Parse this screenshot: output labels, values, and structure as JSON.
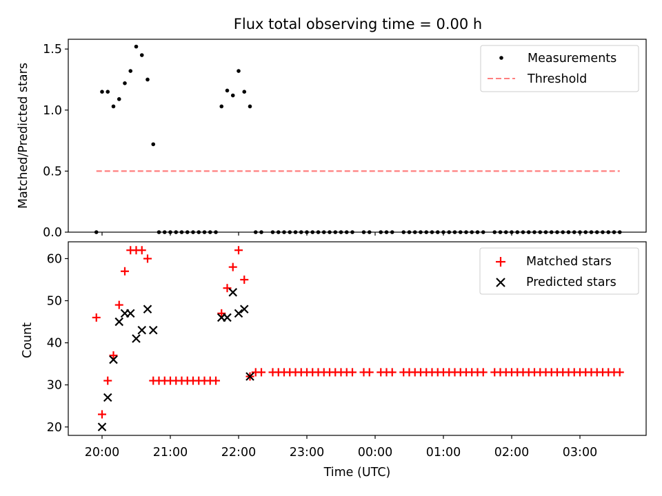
{
  "chart_data": [
    {
      "type": "scatter",
      "title": "Flux total observing time = 0.00 h",
      "xlabel": "",
      "ylabel": "Matched/Predicted stars",
      "ylim": [
        0,
        1.58
      ],
      "yticks": [
        "0.0",
        "0.5",
        "1.0",
        "1.5"
      ],
      "legend": "top-right",
      "threshold": 0.5,
      "series": [
        {
          "name": "Measurements",
          "marker": "dot",
          "color": "#000000",
          "points": [
            [
              "19:55",
              0
            ],
            [
              "20:00",
              1.15
            ],
            [
              "20:05",
              1.15
            ],
            [
              "20:10",
              1.03
            ],
            [
              "20:15",
              1.09
            ],
            [
              "20:20",
              1.22
            ],
            [
              "20:25",
              1.32
            ],
            [
              "20:30",
              1.52
            ],
            [
              "20:35",
              1.45
            ],
            [
              "20:40",
              1.25
            ],
            [
              "20:45",
              0.72
            ],
            [
              "20:50",
              0
            ],
            [
              "20:55",
              0
            ],
            [
              "21:00",
              0
            ],
            [
              "21:05",
              0
            ],
            [
              "21:10",
              0
            ],
            [
              "21:15",
              0
            ],
            [
              "21:20",
              0
            ],
            [
              "21:25",
              0
            ],
            [
              "21:30",
              0
            ],
            [
              "21:35",
              0
            ],
            [
              "21:40",
              0
            ],
            [
              "21:45",
              1.03
            ],
            [
              "21:50",
              1.16
            ],
            [
              "21:55",
              1.12
            ],
            [
              "22:00",
              1.32
            ],
            [
              "22:05",
              1.15
            ],
            [
              "22:10",
              1.03
            ],
            [
              "22:15",
              0
            ],
            [
              "22:20",
              0
            ],
            [
              "22:30",
              0
            ],
            [
              "22:35",
              0
            ],
            [
              "22:40",
              0
            ],
            [
              "22:45",
              0
            ],
            [
              "22:50",
              0
            ],
            [
              "22:55",
              0
            ],
            [
              "23:00",
              0
            ],
            [
              "23:05",
              0
            ],
            [
              "23:10",
              0
            ],
            [
              "23:15",
              0
            ],
            [
              "23:20",
              0
            ],
            [
              "23:25",
              0
            ],
            [
              "23:30",
              0
            ],
            [
              "23:35",
              0
            ],
            [
              "23:40",
              0
            ],
            [
              "23:50",
              0
            ],
            [
              "23:55",
              0
            ],
            [
              "00:05",
              0
            ],
            [
              "00:10",
              0
            ],
            [
              "00:15",
              0
            ],
            [
              "00:25",
              0
            ],
            [
              "00:30",
              0
            ],
            [
              "00:35",
              0
            ],
            [
              "00:40",
              0
            ],
            [
              "00:45",
              0
            ],
            [
              "00:50",
              0
            ],
            [
              "00:55",
              0
            ],
            [
              "01:00",
              0
            ],
            [
              "01:05",
              0
            ],
            [
              "01:10",
              0
            ],
            [
              "01:15",
              0
            ],
            [
              "01:20",
              0
            ],
            [
              "01:25",
              0
            ],
            [
              "01:30",
              0
            ],
            [
              "01:35",
              0
            ],
            [
              "01:45",
              0
            ],
            [
              "01:50",
              0
            ],
            [
              "01:55",
              0
            ],
            [
              "02:00",
              0
            ],
            [
              "02:05",
              0
            ],
            [
              "02:10",
              0
            ],
            [
              "02:15",
              0
            ],
            [
              "02:20",
              0
            ],
            [
              "02:25",
              0
            ],
            [
              "02:30",
              0
            ],
            [
              "02:35",
              0
            ],
            [
              "02:40",
              0
            ],
            [
              "02:45",
              0
            ],
            [
              "02:50",
              0
            ],
            [
              "02:55",
              0
            ],
            [
              "03:00",
              0
            ],
            [
              "03:05",
              0
            ],
            [
              "03:10",
              0
            ],
            [
              "03:15",
              0
            ],
            [
              "03:20",
              0
            ],
            [
              "03:25",
              0
            ],
            [
              "03:30",
              0
            ],
            [
              "03:35",
              0
            ]
          ]
        },
        {
          "name": "Threshold",
          "marker": "dashed-line",
          "color": "#ff7f7f",
          "points": [
            [
              "19:55",
              0.5
            ],
            [
              "03:35",
              0.5
            ]
          ]
        }
      ]
    },
    {
      "type": "scatter",
      "title": "",
      "xlabel": "Time (UTC)",
      "ylabel": "Count",
      "ylim": [
        18,
        64
      ],
      "yticks": [
        "20",
        "30",
        "40",
        "50",
        "60"
      ],
      "xticks": [
        "20:00",
        "21:00",
        "22:00",
        "23:00",
        "00:00",
        "01:00",
        "02:00",
        "03:00"
      ],
      "legend": "top-right",
      "series": [
        {
          "name": "Matched stars",
          "marker": "plus",
          "color": "#ff0000",
          "points": [
            [
              "19:55",
              46
            ],
            [
              "20:00",
              23
            ],
            [
              "20:05",
              31
            ],
            [
              "20:10",
              37
            ],
            [
              "20:15",
              49
            ],
            [
              "20:20",
              57
            ],
            [
              "20:25",
              62
            ],
            [
              "20:30",
              62
            ],
            [
              "20:35",
              62
            ],
            [
              "20:40",
              60
            ],
            [
              "20:45",
              31
            ],
            [
              "20:50",
              31
            ],
            [
              "20:55",
              31
            ],
            [
              "21:00",
              31
            ],
            [
              "21:05",
              31
            ],
            [
              "21:10",
              31
            ],
            [
              "21:15",
              31
            ],
            [
              "21:20",
              31
            ],
            [
              "21:25",
              31
            ],
            [
              "21:30",
              31
            ],
            [
              "21:35",
              31
            ],
            [
              "21:40",
              31
            ],
            [
              "21:45",
              47
            ],
            [
              "21:50",
              53
            ],
            [
              "21:55",
              58
            ],
            [
              "22:00",
              62
            ],
            [
              "22:05",
              55
            ],
            [
              "22:10",
              32
            ],
            [
              "22:15",
              33
            ],
            [
              "22:20",
              33
            ],
            [
              "22:30",
              33
            ],
            [
              "22:35",
              33
            ],
            [
              "22:40",
              33
            ],
            [
              "22:45",
              33
            ],
            [
              "22:50",
              33
            ],
            [
              "22:55",
              33
            ],
            [
              "23:00",
              33
            ],
            [
              "23:05",
              33
            ],
            [
              "23:10",
              33
            ],
            [
              "23:15",
              33
            ],
            [
              "23:20",
              33
            ],
            [
              "23:25",
              33
            ],
            [
              "23:30",
              33
            ],
            [
              "23:35",
              33
            ],
            [
              "23:40",
              33
            ],
            [
              "23:50",
              33
            ],
            [
              "23:55",
              33
            ],
            [
              "00:05",
              33
            ],
            [
              "00:10",
              33
            ],
            [
              "00:15",
              33
            ],
            [
              "00:25",
              33
            ],
            [
              "00:30",
              33
            ],
            [
              "00:35",
              33
            ],
            [
              "00:40",
              33
            ],
            [
              "00:45",
              33
            ],
            [
              "00:50",
              33
            ],
            [
              "00:55",
              33
            ],
            [
              "01:00",
              33
            ],
            [
              "01:05",
              33
            ],
            [
              "01:10",
              33
            ],
            [
              "01:15",
              33
            ],
            [
              "01:20",
              33
            ],
            [
              "01:25",
              33
            ],
            [
              "01:30",
              33
            ],
            [
              "01:35",
              33
            ],
            [
              "01:45",
              33
            ],
            [
              "01:50",
              33
            ],
            [
              "01:55",
              33
            ],
            [
              "02:00",
              33
            ],
            [
              "02:05",
              33
            ],
            [
              "02:10",
              33
            ],
            [
              "02:15",
              33
            ],
            [
              "02:20",
              33
            ],
            [
              "02:25",
              33
            ],
            [
              "02:30",
              33
            ],
            [
              "02:35",
              33
            ],
            [
              "02:40",
              33
            ],
            [
              "02:45",
              33
            ],
            [
              "02:50",
              33
            ],
            [
              "02:55",
              33
            ],
            [
              "03:00",
              33
            ],
            [
              "03:05",
              33
            ],
            [
              "03:10",
              33
            ],
            [
              "03:15",
              33
            ],
            [
              "03:20",
              33
            ],
            [
              "03:25",
              33
            ],
            [
              "03:30",
              33
            ],
            [
              "03:35",
              33
            ]
          ]
        },
        {
          "name": "Predicted stars",
          "marker": "x",
          "color": "#000000",
          "points": [
            [
              "20:00",
              20
            ],
            [
              "20:05",
              27
            ],
            [
              "20:10",
              36
            ],
            [
              "20:15",
              45
            ],
            [
              "20:20",
              47
            ],
            [
              "20:25",
              47
            ],
            [
              "20:30",
              41
            ],
            [
              "20:35",
              43
            ],
            [
              "20:40",
              48
            ],
            [
              "20:45",
              43
            ],
            [
              "21:45",
              46
            ],
            [
              "21:50",
              46
            ],
            [
              "21:55",
              52
            ],
            [
              "22:00",
              47
            ],
            [
              "22:05",
              48
            ],
            [
              "22:10",
              32
            ]
          ]
        }
      ]
    }
  ]
}
